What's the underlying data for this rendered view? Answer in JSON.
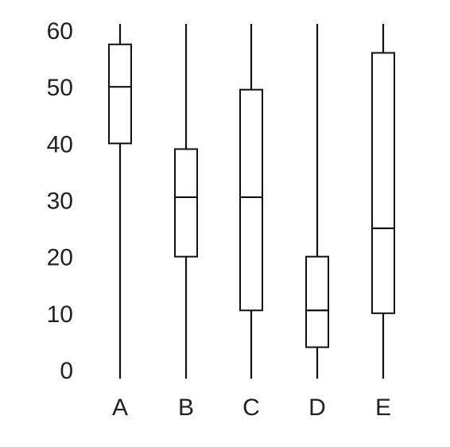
{
  "chart_data": {
    "type": "boxplot",
    "title": "",
    "xlabel": "",
    "ylabel": "",
    "ylim": [
      0,
      60
    ],
    "y_ticks": [
      "0",
      "10",
      "20",
      "30",
      "40",
      "50",
      "60"
    ],
    "grid": false,
    "categories": [
      "A",
      "B",
      "C",
      "D",
      "E"
    ],
    "boxes": [
      {
        "label": "A",
        "whisker_low": 0,
        "q1": 40,
        "median": 50,
        "q3": 57.5,
        "whisker_high": 62
      },
      {
        "label": "B",
        "whisker_low": 0,
        "q1": 20,
        "median": 30.5,
        "q3": 39,
        "whisker_high": 62
      },
      {
        "label": "C",
        "whisker_low": 0,
        "q1": 10.5,
        "median": 30.5,
        "q3": 49.5,
        "whisker_high": 62
      },
      {
        "label": "D",
        "whisker_low": 0,
        "q1": 4,
        "median": 10.5,
        "q3": 20,
        "whisker_high": 62
      },
      {
        "label": "E",
        "whisker_low": 0,
        "q1": 10,
        "median": 25,
        "q3": 56,
        "whisker_high": 62
      }
    ],
    "colors": {
      "line": "#111111",
      "fill": "#ffffff",
      "text": "#222222"
    }
  }
}
